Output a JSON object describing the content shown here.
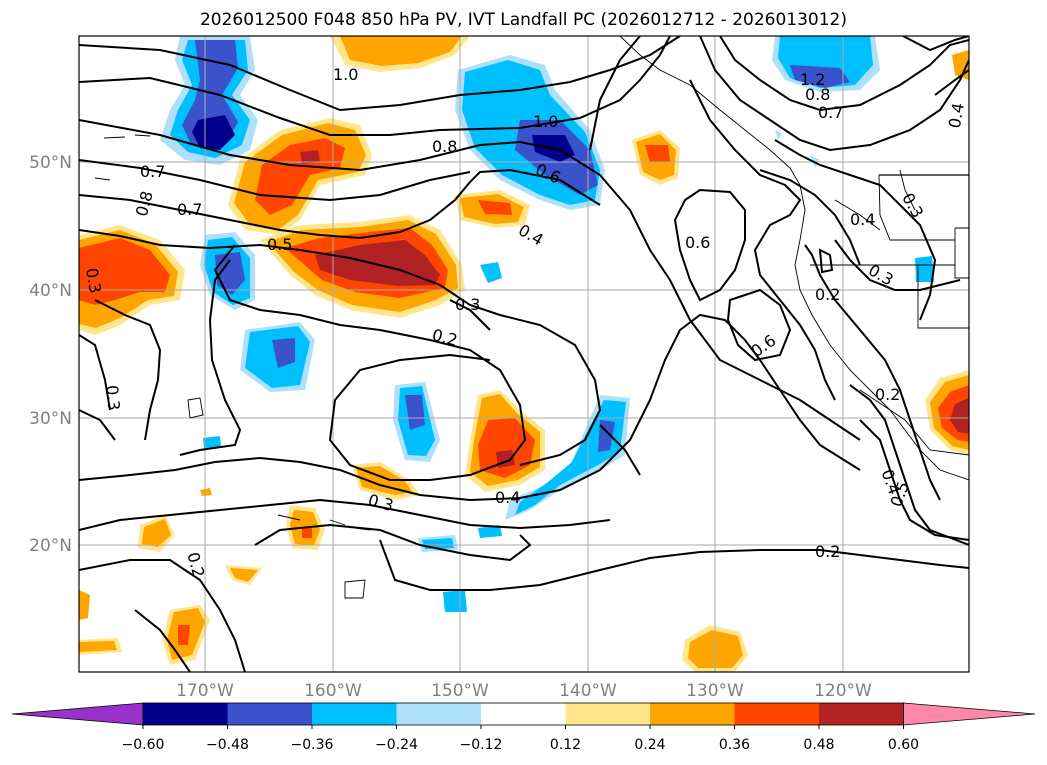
{
  "title": "2026012500 F048 850 hPa PV, IVT Landfall PC (2026012712 - 2026013012)",
  "latitude_labels": [
    "50°N",
    "40°N",
    "30°N",
    "20°N"
  ],
  "longitude_labels": [
    "170°W",
    "160°W",
    "150°W",
    "140°W",
    "130°W",
    "120°W"
  ],
  "colorbar": {
    "ticks": [
      "−0.60",
      "−0.48",
      "−0.36",
      "−0.24",
      "−0.12",
      "0.12",
      "0.24",
      "0.36",
      "0.48",
      "0.60"
    ],
    "colors": [
      "#9932CC",
      "#00008B",
      "#3A52CC",
      "#00BFFF",
      "#ADE0FA",
      "#FFFFFF",
      "#FFE68A",
      "#FFA500",
      "#FF4500",
      "#B22222",
      "#FF88AA"
    ]
  },
  "contour_labels": [
    "1.0",
    "1.2",
    "0.8",
    "0.7",
    "0.4",
    "1.0",
    "0.8",
    "0.6",
    "0.4",
    "0.4",
    "0.3",
    "0.7",
    "0.8",
    "0.7",
    "0.5",
    "0.3",
    "0.3",
    "0.2",
    "0.6",
    "0.6",
    "0.2",
    "0.3",
    "0.3",
    "0.4",
    "0.3",
    "0.2",
    "0.2",
    "0.4",
    "0.5",
    "0.2"
  ]
}
